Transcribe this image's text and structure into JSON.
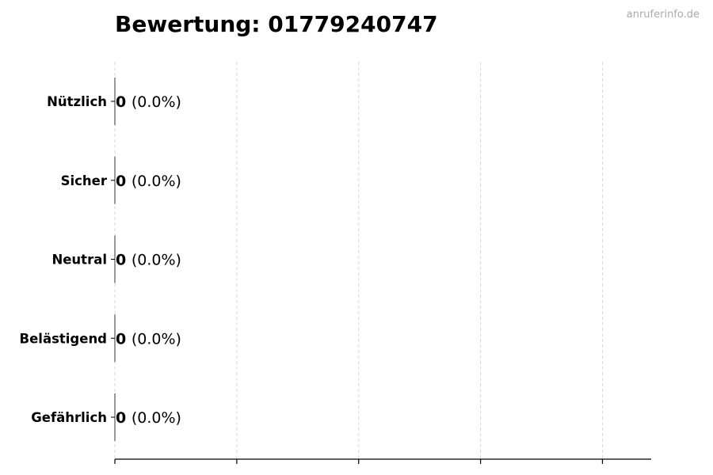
{
  "watermark": "anruferinfo.de",
  "chart_data": {
    "type": "bar",
    "orientation": "horizontal",
    "title": "Bewertung: 01779240747",
    "categories": [
      "Nützlich",
      "Sicher",
      "Neutral",
      "Belästigend",
      "Gefährlich"
    ],
    "values": [
      0,
      0,
      0,
      0,
      0
    ],
    "data_labels": [
      {
        "count": "0",
        "percent": "(0.0%)"
      },
      {
        "count": "0",
        "percent": "(0.0%)"
      },
      {
        "count": "0",
        "percent": "(0.0%)"
      },
      {
        "count": "0",
        "percent": "(0.0%)"
      },
      {
        "count": "0",
        "percent": "(0.0%)"
      }
    ],
    "xlabel": "",
    "ylabel": "",
    "xlim": [
      0,
      4.4
    ],
    "xticks": [
      0,
      1,
      2,
      3,
      4
    ],
    "xtick_labels_shown": false,
    "grid": "x, dashed",
    "colors": {
      "gridline": "#d9d9d9",
      "bar_edge": "#333333",
      "watermark": "#aaaaaa"
    }
  }
}
